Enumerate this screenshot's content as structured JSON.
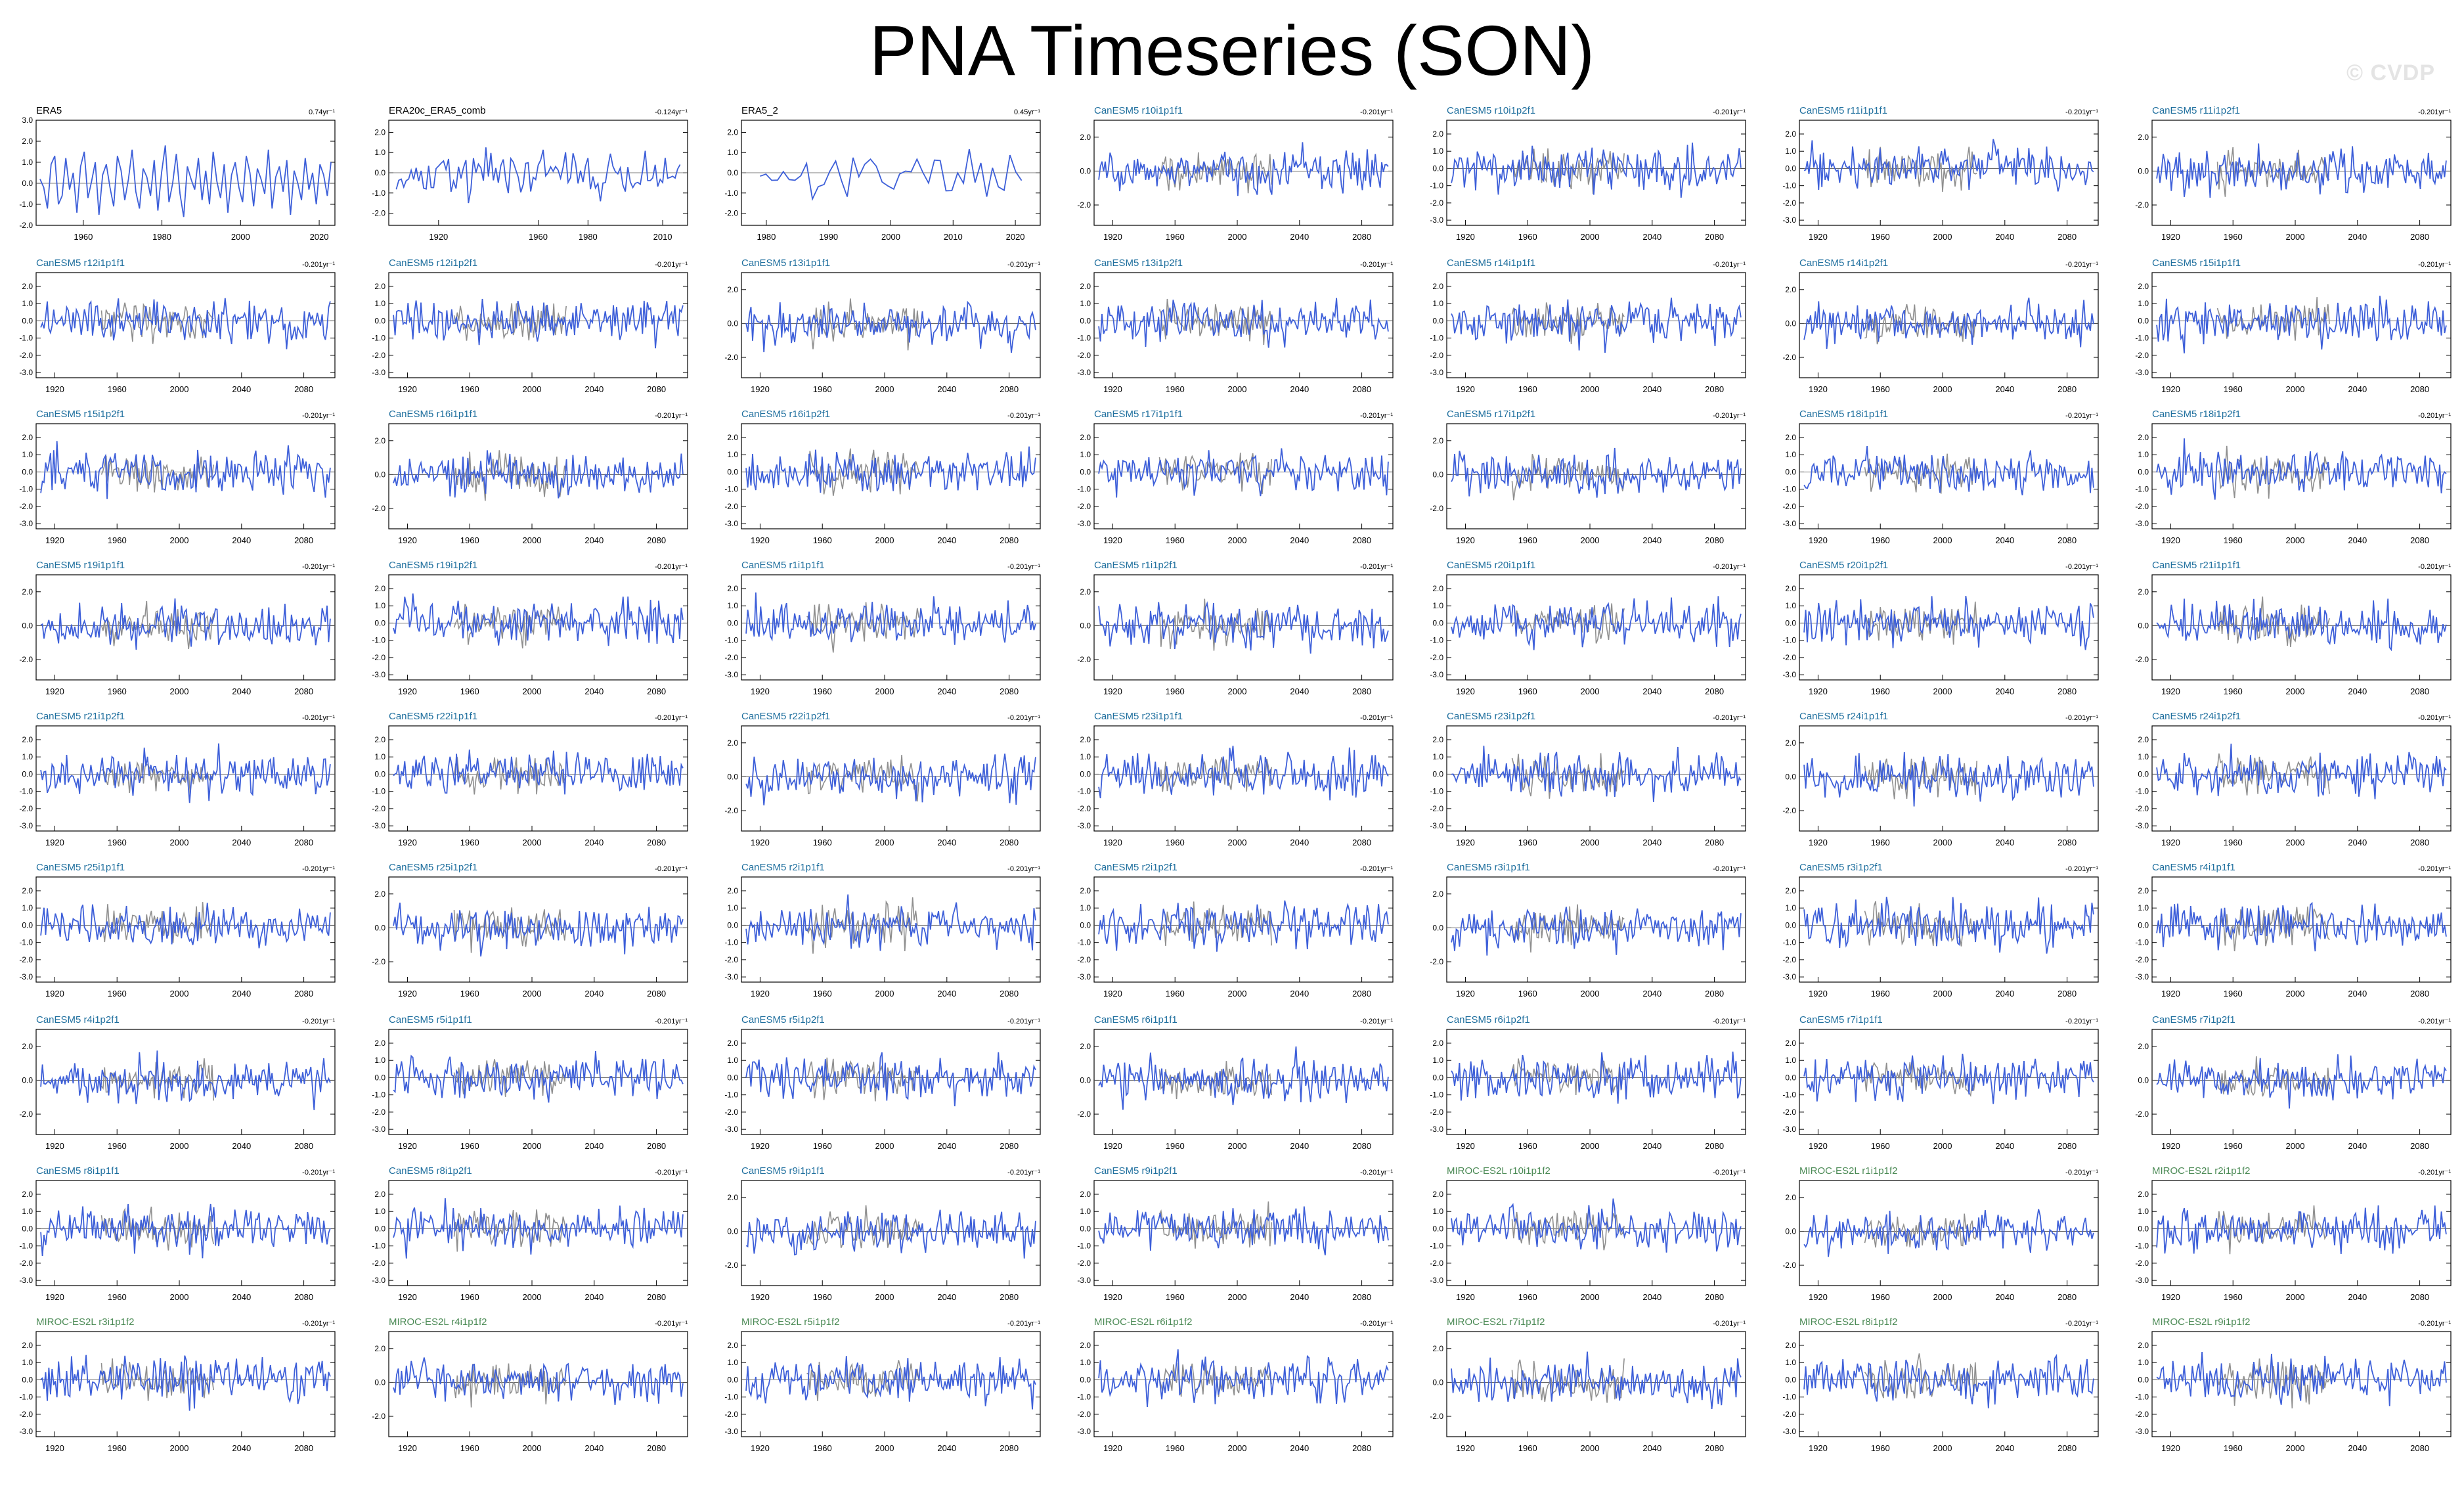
{
  "title": "PNA Timeseries (SON)",
  "watermark": "© CVDP",
  "colors": {
    "model_line": "#3d5fd9",
    "observation_gray": "#8f8f8f",
    "obs_title": "#000000",
    "canesm5_title": "#1f6f9e",
    "miroc_title": "#4b8a55"
  },
  "chart_data": [
    {
      "type": "line",
      "title": "ERA5",
      "trend": "0.74yr⁻¹",
      "title_color": "obs",
      "x_ticks": [
        "1960",
        "1980",
        "2000",
        "2020"
      ],
      "xlim": [
        1945,
        2025
      ],
      "ylim": [
        -2.0,
        3.0
      ],
      "y_ticks": [
        "3.0",
        "2.0",
        "1.0",
        "0.0",
        "-1.0",
        "-2.0"
      ],
      "series": [
        {
          "values": [
            0.2,
            -0.2,
            -1.2,
            0.9,
            1.3,
            -1.0,
            -0.6,
            1.2,
            -0.3,
            0.5,
            -1.4,
            0.8,
            1.5,
            -0.7,
            0.1,
            1.0,
            -1.5,
            0.4,
            0.9,
            -0.2,
            -1.1,
            1.3,
            0.6,
            -0.8,
            0.2,
            1.6,
            -0.4,
            -1.2,
            0.7,
            0.3,
            -0.6,
            1.1,
            -1.3,
            0.5,
            1.8,
            -0.9,
            0.0,
            1.4,
            -0.5,
            -1.6,
            0.8,
            0.2,
            -0.3,
            1.2,
            -0.8,
            0.6,
            -1.0,
            1.5,
            0.1,
            -0.7,
            0.9,
            -1.4,
            0.4,
            1.0,
            -0.2,
            -0.9,
            1.3,
            0.5,
            -1.1,
            0.7,
            0.2,
            -0.5,
            1.6,
            -1.2,
            0.3,
            0.8,
            -0.4,
            1.1,
            -1.5,
            0.6,
            0.0,
            -0.8,
            1.2,
            -0.3,
            0.5,
            -1.0,
            0.9,
            0.4,
            -0.6,
            1.0
          ]
        }
      ],
      "ref_start": 1945,
      "ref_end": 2024
    }
  ],
  "panel_grid": {
    "rows": 9,
    "cols": 7,
    "titles": [
      [
        "ERA5",
        "ERA20c_ERA5_comb",
        "ERA5_2",
        "CanESM5 r10i1p1f1",
        "CanESM5 r10i1p2f1",
        "CanESM5 r11i1p1f1",
        "CanESM5 r11i1p2f1"
      ],
      [
        "CanESM5 r12i1p1f1",
        "CanESM5 r12i1p2f1",
        "CanESM5 r13i1p1f1",
        "CanESM5 r13i1p2f1",
        "CanESM5 r14i1p1f1",
        "CanESM5 r14i1p2f1",
        "CanESM5 r15i1p1f1"
      ],
      [
        "CanESM5 r15i1p2f1",
        "CanESM5 r16i1p1f1",
        "CanESM5 r16i1p2f1",
        "CanESM5 r17i1p1f1",
        "CanESM5 r17i1p2f1",
        "CanESM5 r18i1p1f1",
        "CanESM5 r18i1p2f1"
      ],
      [
        "CanESM5 r19i1p1f1",
        "CanESM5 r19i1p2f1",
        "CanESM5 r1i1p1f1",
        "CanESM5 r1i1p2f1",
        "CanESM5 r20i1p1f1",
        "CanESM5 r20i1p2f1",
        "CanESM5 r21i1p1f1"
      ],
      [
        "CanESM5 r21i1p2f1",
        "CanESM5 r22i1p1f1",
        "CanESM5 r22i1p2f1",
        "CanESM5 r23i1p1f1",
        "CanESM5 r23i1p2f1",
        "CanESM5 r24i1p1f1",
        "CanESM5 r24i1p2f1"
      ],
      [
        "CanESM5 r25i1p1f1",
        "CanESM5 r25i1p2f1",
        "CanESM5 r2i1p1f1",
        "CanESM5 r2i1p2f1",
        "CanESM5 r3i1p1f1",
        "CanESM5 r3i1p2f1",
        "CanESM5 r4i1p1f1"
      ],
      [
        "CanESM5 r4i1p2f1",
        "CanESM5 r5i1p1f1",
        "CanESM5 r5i1p2f1",
        "CanESM5 r6i1p1f1",
        "CanESM5 r6i1p2f1",
        "CanESM5 r7i1p1f1",
        "CanESM5 r7i1p2f1"
      ],
      [
        "CanESM5 r8i1p1f1",
        "CanESM5 r8i1p2f1",
        "CanESM5 r9i1p1f1",
        "CanESM5 r9i1p2f1",
        "MIROC-ES2L r10i1p1f2",
        "MIROC-ES2L r1i1p1f2",
        "MIROC-ES2L r2i1p1f2"
      ],
      [
        "MIROC-ES2L r3i1p1f2",
        "MIROC-ES2L r4i1p1f2",
        "MIROC-ES2L r5i1p1f2",
        "MIROC-ES2L r6i1p1f2",
        "MIROC-ES2L r7i1p1f2",
        "MIROC-ES2L r8i1p1f2",
        "MIROC-ES2L r9i1p1f2"
      ]
    ],
    "trends": [
      [
        "0.74yr⁻¹",
        "-0.124yr⁻¹",
        "0.45yr⁻¹",
        "-0.201yr⁻¹",
        "-0.201yr⁻¹",
        "-0.201yr⁻¹",
        "-0.201yr⁻¹"
      ],
      [
        "-0.201yr⁻¹",
        "-0.201yr⁻¹",
        "-0.201yr⁻¹",
        "-0.201yr⁻¹",
        "-0.201yr⁻¹",
        "-0.201yr⁻¹",
        "-0.201yr⁻¹"
      ],
      [
        "-0.201yr⁻¹",
        "-0.201yr⁻¹",
        "-0.201yr⁻¹",
        "-0.201yr⁻¹",
        "-0.201yr⁻¹",
        "-0.201yr⁻¹",
        "-0.201yr⁻¹"
      ],
      [
        "-0.201yr⁻¹",
        "-0.201yr⁻¹",
        "-0.201yr⁻¹",
        "-0.201yr⁻¹",
        "-0.201yr⁻¹",
        "-0.201yr⁻¹",
        "-0.201yr⁻¹"
      ],
      [
        "-0.201yr⁻¹",
        "-0.201yr⁻¹",
        "-0.201yr⁻¹",
        "-0.201yr⁻¹",
        "-0.201yr⁻¹",
        "-0.201yr⁻¹",
        "-0.201yr⁻¹"
      ],
      [
        "-0.201yr⁻¹",
        "-0.201yr⁻¹",
        "-0.201yr⁻¹",
        "-0.201yr⁻¹",
        "-0.201yr⁻¹",
        "-0.201yr⁻¹",
        "-0.201yr⁻¹"
      ],
      [
        "-0.201yr⁻¹",
        "-0.201yr⁻¹",
        "-0.201yr⁻¹",
        "-0.201yr⁻¹",
        "-0.201yr⁻¹",
        "-0.201yr⁻¹",
        "-0.201yr⁻¹"
      ],
      [
        "-0.201yr⁻¹",
        "-0.201yr⁻¹",
        "-0.201yr⁻¹",
        "-0.201yr⁻¹",
        "-0.201yr⁻¹",
        "-0.201yr⁻¹",
        "-0.201yr⁻¹"
      ],
      [
        "-0.201yr⁻¹",
        "-0.201yr⁻¹",
        "-0.201yr⁻¹",
        "-0.201yr⁻¹",
        "-0.201yr⁻¹",
        "-0.201yr⁻¹",
        "-0.201yr⁻¹"
      ]
    ],
    "obs_x_ticks": [
      [
        "1960",
        "1980",
        "2000",
        "2020"
      ],
      [
        "1920",
        "1960",
        "1980",
        "2010"
      ],
      [
        "1980",
        "1990",
        "2000",
        "2010",
        "2020"
      ]
    ],
    "model_x_ticks": [
      "1920",
      "1960",
      "2000",
      "2040",
      "2080"
    ],
    "y_ticks_default": [
      "2.0",
      "1.0",
      "0.0",
      "-1.0",
      "-2.0",
      "-3.0"
    ],
    "y_ticks_sparse": [
      "2.0",
      "0.0",
      "-2.0"
    ]
  }
}
